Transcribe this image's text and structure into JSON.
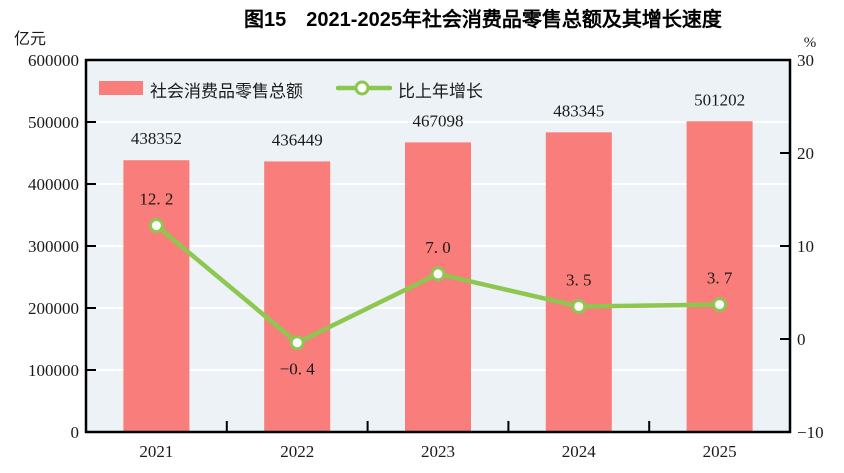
{
  "chart_data": {
    "type": "bar+line",
    "title": "图15　2021-2025年社会消费品零售总额及其增长速度",
    "categories": [
      "2021",
      "2022",
      "2023",
      "2024",
      "2025"
    ],
    "series": [
      {
        "name": "社会消费品零售总额",
        "type": "bar",
        "axis": "left",
        "color": "#f97d7a",
        "values": [
          438352,
          436449,
          467098,
          483345,
          501202
        ],
        "labels": [
          "438352",
          "436449",
          "467098",
          "483345",
          "501202"
        ]
      },
      {
        "name": "比上年增长",
        "type": "line",
        "axis": "right",
        "color": "#8dc750",
        "marker_fill": "#ffffff",
        "values": [
          12.2,
          -0.4,
          7.0,
          3.5,
          3.7
        ],
        "labels": [
          "12. 2",
          "−0. 4",
          "7. 0",
          "3. 5",
          "3. 7"
        ]
      }
    ],
    "left_axis": {
      "unit": "亿元",
      "min": 0,
      "max": 600000,
      "step": 100000,
      "tick_labels": [
        "0",
        "100000",
        "200000",
        "300000",
        "400000",
        "500000",
        "600000"
      ]
    },
    "right_axis": {
      "unit": "%",
      "min": -10,
      "max": 30,
      "step": 10,
      "tick_labels": [
        "−10",
        "0",
        "10",
        "20",
        "30"
      ],
      "inner_tick_values": [
        0,
        10,
        20
      ]
    },
    "plot": {
      "background_color": "#ecf2f6",
      "gridline_color": "#ffffff",
      "frame_color": "#000000",
      "grid": "horizontal-at-left-axis-steps",
      "legend_position": "inside-top-left"
    }
  }
}
